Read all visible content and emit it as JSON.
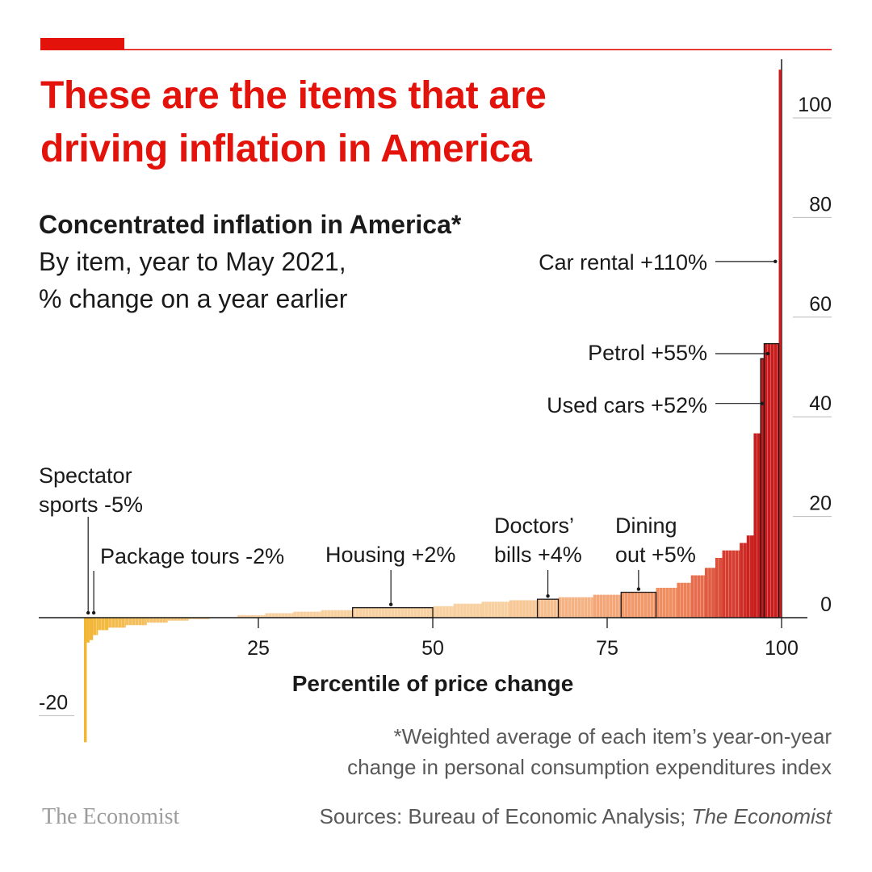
{
  "header": {
    "title": "These are the items that are driving inflation in America",
    "subtitle_bold": "Concentrated inflation in America*",
    "subtitle_line1": "By item, year to May 2021,",
    "subtitle_line2": "% change on a year earlier"
  },
  "footer": {
    "footnote_line1": "*Weighted average of each item’s year-on-year",
    "footnote_line2": "change in personal consumption expenditures index",
    "sources_prefix": "Sources: Bureau of Economic Analysis; ",
    "sources_italic": "The Economist",
    "brand": "The Economist"
  },
  "colors": {
    "brand_red": "#e3120b",
    "dark_red": "#c91d1d",
    "orange": "#f08a5d",
    "yellow": "#f2b632",
    "light_peach": "#f8cf9e"
  },
  "chart_data": {
    "type": "bar",
    "x_axis": {
      "label": "Percentile of price change",
      "range": [
        0,
        100
      ],
      "ticks": [
        25,
        50,
        75,
        100
      ],
      "tick_labels": [
        "25",
        "50",
        "75",
        "100"
      ]
    },
    "y_axis": {
      "range": [
        -25,
        110
      ],
      "ticks": [
        -20,
        0,
        20,
        40,
        60,
        80,
        100
      ],
      "tick_labels": [
        "-20",
        "0",
        "20",
        "40",
        "60",
        "80",
        "100"
      ],
      "grid": false
    },
    "series": [
      {
        "name": "price change",
        "segments": [
          {
            "x0": 0,
            "x1": 0.4,
            "value": -25
          },
          {
            "x0": 0.4,
            "x1": 0.8,
            "value": -5
          },
          {
            "x0": 0.8,
            "x1": 1.3,
            "value": -4.5
          },
          {
            "x0": 1.3,
            "x1": 2.0,
            "value": -3.5
          },
          {
            "x0": 2.0,
            "x1": 3.5,
            "value": -2.5
          },
          {
            "x0": 3.5,
            "x1": 6.0,
            "value": -2
          },
          {
            "x0": 6.0,
            "x1": 9.0,
            "value": -1.5
          },
          {
            "x0": 9.0,
            "x1": 12.0,
            "value": -1.0
          },
          {
            "x0": 12.0,
            "x1": 15.0,
            "value": -0.6
          },
          {
            "x0": 15.0,
            "x1": 18.0,
            "value": -0.3
          },
          {
            "x0": 18.0,
            "x1": 22.0,
            "value": 0.1
          },
          {
            "x0": 22.0,
            "x1": 26.0,
            "value": 0.5
          },
          {
            "x0": 26.0,
            "x1": 30.0,
            "value": 0.9
          },
          {
            "x0": 30.0,
            "x1": 34.0,
            "value": 1.2
          },
          {
            "x0": 34.0,
            "x1": 38.5,
            "value": 1.5
          },
          {
            "x0": 38.5,
            "x1": 50.0,
            "value": 2.0
          },
          {
            "x0": 50.0,
            "x1": 53.0,
            "value": 2.3
          },
          {
            "x0": 53.0,
            "x1": 57.0,
            "value": 2.8
          },
          {
            "x0": 57.0,
            "x1": 61.0,
            "value": 3.2
          },
          {
            "x0": 61.0,
            "x1": 65.0,
            "value": 3.5
          },
          {
            "x0": 65.0,
            "x1": 68.0,
            "value": 3.7
          },
          {
            "x0": 68.0,
            "x1": 73.0,
            "value": 4.1
          },
          {
            "x0": 73.0,
            "x1": 77.0,
            "value": 4.6
          },
          {
            "x0": 77.0,
            "x1": 82.0,
            "value": 5.1
          },
          {
            "x0": 82.0,
            "x1": 85.0,
            "value": 6.0
          },
          {
            "x0": 85.0,
            "x1": 87.0,
            "value": 7.0
          },
          {
            "x0": 87.0,
            "x1": 89.0,
            "value": 8.5
          },
          {
            "x0": 89.0,
            "x1": 90.5,
            "value": 10.0
          },
          {
            "x0": 90.5,
            "x1": 91.5,
            "value": 12.0
          },
          {
            "x0": 91.5,
            "x1": 94.0,
            "value": 13.5
          },
          {
            "x0": 94.0,
            "x1": 95.0,
            "value": 15.0
          },
          {
            "x0": 95.0,
            "x1": 96.0,
            "value": 16.5
          },
          {
            "x0": 96.0,
            "x1": 97.0,
            "value": 37.0
          },
          {
            "x0": 97.0,
            "x1": 97.5,
            "value": 52.0
          },
          {
            "x0": 97.5,
            "x1": 99.6,
            "value": 55.0
          },
          {
            "x0": 99.6,
            "x1": 100.0,
            "value": 110.0
          }
        ]
      }
    ],
    "highlight_boxes": [
      {
        "name": "Housing",
        "x0": 38.5,
        "x1": 50.0,
        "value": 2.0
      },
      {
        "name": "Doctors' bills",
        "x0": 65.0,
        "x1": 68.0,
        "value": 3.7
      },
      {
        "name": "Dining out",
        "x0": 77.0,
        "x1": 82.0,
        "value": 5.1
      },
      {
        "name": "Used cars",
        "x0": 97.0,
        "x1": 97.5,
        "value": 52.0
      },
      {
        "name": "Petrol",
        "x0": 97.5,
        "x1": 99.6,
        "value": 55.0
      }
    ],
    "annotations": [
      {
        "lines": [
          "Spectator",
          "sports -5%"
        ],
        "target_x": 0.6,
        "target_value": -5,
        "item": "Spectator sports",
        "change": -5
      },
      {
        "lines": [
          "Package tours -2%"
        ],
        "target_x": 1.4,
        "target_value": -0.3,
        "item": "Package tours",
        "change": -2
      },
      {
        "lines": [
          "Housing +2%"
        ],
        "target_x": 44.0,
        "target_value": 2.0,
        "item": "Housing",
        "change": 2
      },
      {
        "lines": [
          "Doctors’",
          "bills +4%"
        ],
        "target_x": 66.5,
        "target_value": 3.7,
        "item": "Doctors' bills",
        "change": 4
      },
      {
        "lines": [
          "Dining",
          "out +5%"
        ],
        "target_x": 79.5,
        "target_value": 5.1,
        "item": "Dining out",
        "change": 5
      },
      {
        "lines": [
          "Used cars +52%"
        ],
        "target_x": 97.2,
        "target_value": 43.0,
        "item": "Used cars",
        "change": 52
      },
      {
        "lines": [
          "Petrol +55%"
        ],
        "target_x": 98.5,
        "target_value": 53.0,
        "item": "Petrol",
        "change": 55
      },
      {
        "lines": [
          "Car rental +110%"
        ],
        "target_x": 99.8,
        "target_value": 71.5,
        "item": "Car rental",
        "change": 110
      }
    ]
  }
}
